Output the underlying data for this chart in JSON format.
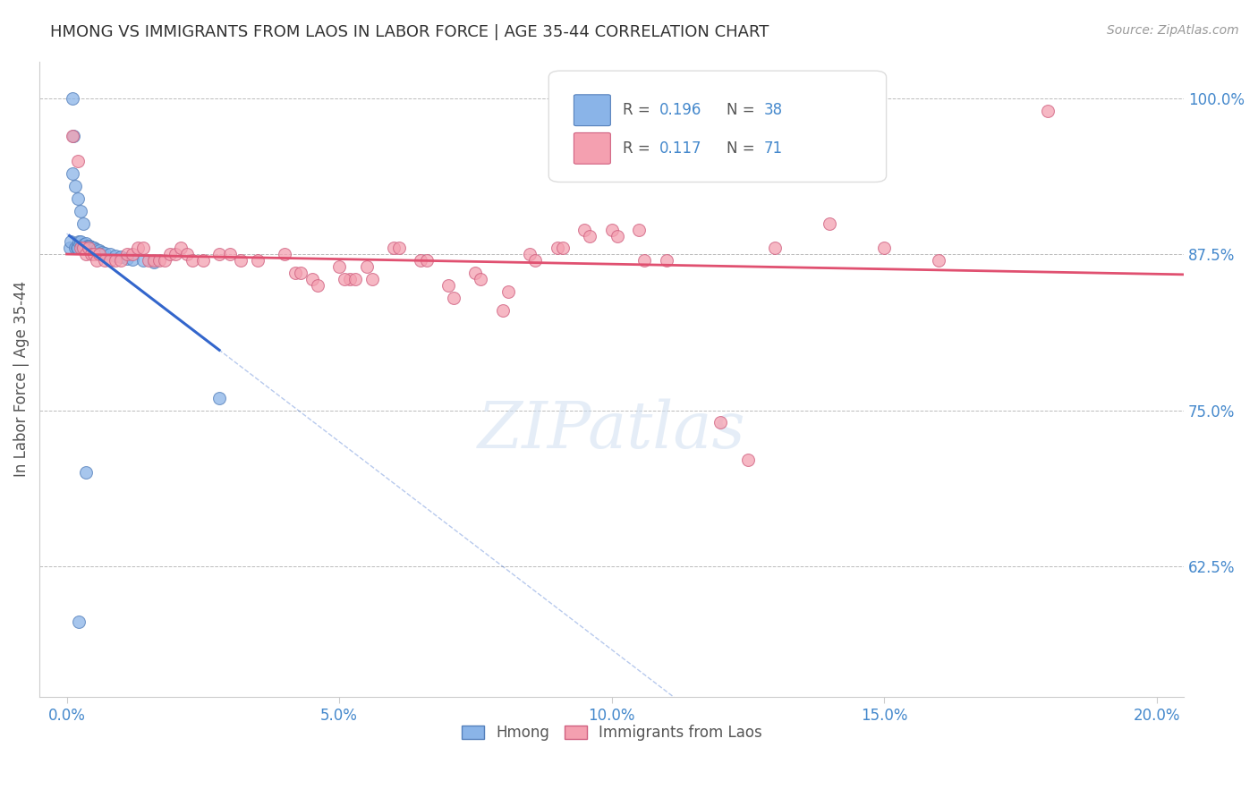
{
  "title": "HMONG VS IMMIGRANTS FROM LAOS IN LABOR FORCE | AGE 35-44 CORRELATION CHART",
  "source": "Source: ZipAtlas.com",
  "xlabel_vals": [
    0.0,
    5.0,
    10.0,
    15.0,
    20.0
  ],
  "ylabel_ticks_right": [
    "100.0%",
    "87.5%",
    "75.0%",
    "62.5%"
  ],
  "ylabel_vals_right": [
    1.0,
    0.875,
    0.75,
    0.625
  ],
  "ylabel_label": "In Labor Force | Age 35-44",
  "xlim": [
    -0.5,
    20.5
  ],
  "ylim": [
    0.52,
    1.03
  ],
  "hmong_color": "#8ab4e8",
  "laos_color": "#f4a0b0",
  "hmong_edge": "#5580bb",
  "laos_edge": "#d06080",
  "reg_blue": "#3366cc",
  "reg_pink": "#e05070",
  "background": "#ffffff",
  "grid_color": "#bbbbbb",
  "title_color": "#333333",
  "right_label_color": "#4488cc",
  "bottom_label_color": "#4488cc",
  "hmong_x": [
    0.05,
    0.08,
    0.1,
    0.12,
    0.15,
    0.18,
    0.2,
    0.22,
    0.25,
    0.28,
    0.3,
    0.32,
    0.35,
    0.38,
    0.4,
    0.42,
    0.45,
    0.48,
    0.5,
    0.55,
    0.6,
    0.65,
    0.7,
    0.8,
    0.9,
    1.0,
    1.1,
    1.2,
    1.4,
    1.6,
    0.1,
    0.15,
    0.2,
    0.25,
    0.3,
    2.8,
    0.35,
    0.22
  ],
  "hmong_y": [
    0.88,
    0.885,
    1.0,
    0.97,
    0.88,
    0.88,
    0.88,
    0.885,
    0.885,
    0.88,
    0.882,
    0.883,
    0.884,
    0.882,
    0.882,
    0.882,
    0.881,
    0.88,
    0.88,
    0.879,
    0.878,
    0.877,
    0.876,
    0.875,
    0.874,
    0.873,
    0.872,
    0.871,
    0.87,
    0.869,
    0.94,
    0.93,
    0.92,
    0.91,
    0.9,
    0.76,
    0.7,
    0.58
  ],
  "laos_x": [
    0.1,
    0.2,
    0.25,
    0.3,
    0.35,
    0.4,
    0.45,
    0.5,
    0.55,
    0.6,
    0.7,
    0.8,
    0.9,
    1.0,
    1.1,
    1.2,
    1.3,
    1.4,
    1.5,
    1.6,
    1.7,
    1.8,
    1.9,
    2.0,
    2.1,
    2.2,
    2.3,
    2.5,
    2.8,
    3.0,
    3.2,
    3.5,
    4.0,
    4.2,
    4.5,
    5.0,
    5.2,
    5.5,
    6.0,
    6.5,
    7.0,
    7.5,
    8.0,
    8.5,
    9.0,
    9.5,
    10.0,
    10.5,
    11.0,
    12.0,
    12.5,
    13.0,
    14.0,
    15.0,
    16.0,
    18.0,
    4.3,
    4.6,
    5.1,
    5.3,
    5.6,
    6.1,
    6.6,
    7.1,
    7.6,
    8.1,
    8.6,
    9.1,
    9.6,
    10.1,
    10.6
  ],
  "laos_y": [
    0.97,
    0.95,
    0.88,
    0.88,
    0.875,
    0.88,
    0.875,
    0.875,
    0.87,
    0.875,
    0.87,
    0.87,
    0.87,
    0.87,
    0.875,
    0.875,
    0.88,
    0.88,
    0.87,
    0.87,
    0.87,
    0.87,
    0.875,
    0.875,
    0.88,
    0.875,
    0.87,
    0.87,
    0.875,
    0.875,
    0.87,
    0.87,
    0.875,
    0.86,
    0.855,
    0.865,
    0.855,
    0.865,
    0.88,
    0.87,
    0.85,
    0.86,
    0.83,
    0.875,
    0.88,
    0.895,
    0.895,
    0.895,
    0.87,
    0.74,
    0.71,
    0.88,
    0.9,
    0.88,
    0.87,
    0.99,
    0.86,
    0.85,
    0.855,
    0.855,
    0.855,
    0.88,
    0.87,
    0.84,
    0.855,
    0.845,
    0.87,
    0.88,
    0.89,
    0.89,
    0.87
  ]
}
